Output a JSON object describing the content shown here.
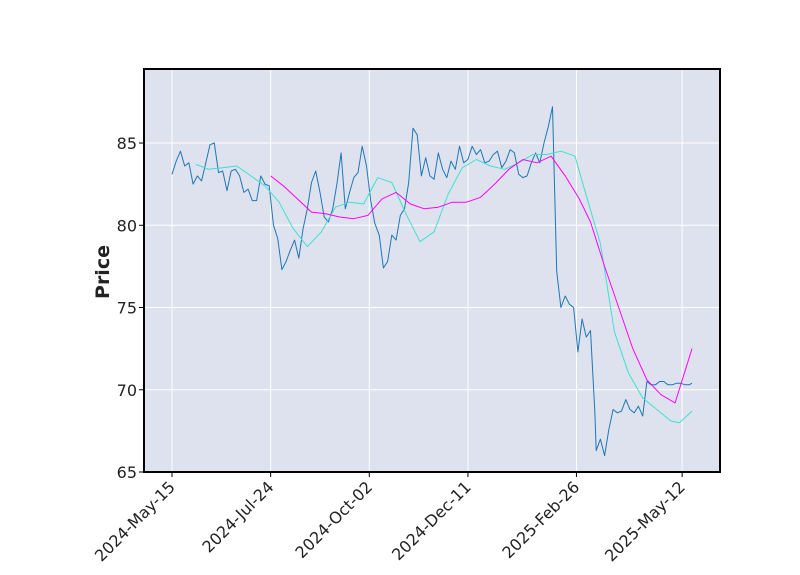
{
  "chart_data": {
    "type": "line",
    "title": "",
    "xlabel": "",
    "ylabel": "Price",
    "ylim": [
      65,
      89.5
    ],
    "yticks": [
      65,
      70,
      75,
      80,
      85
    ],
    "xticks": [
      "2024-May-15",
      "2024-Jul-24",
      "2024-Oct-02",
      "2024-Dec-11",
      "2025-Feb-26",
      "2025-May-12"
    ],
    "grid": true,
    "x_start": "2024-May-15",
    "x_end": "2025-May-19",
    "colors": {
      "background": "#dde2ee",
      "grid": "#ffffff",
      "frame": "#000000",
      "price": "#1f77b4",
      "ma_short": "#40e0d0",
      "ma_long": "#ff00ff"
    },
    "series": [
      {
        "key": "price",
        "x": [
          "2024-05-15",
          "2024-05-18",
          "2024-05-21",
          "2024-05-24",
          "2024-05-27",
          "2024-05-30",
          "2024-06-02",
          "2024-06-05",
          "2024-06-08",
          "2024-06-11",
          "2024-06-14",
          "2024-06-17",
          "2024-06-20",
          "2024-06-23",
          "2024-06-26",
          "2024-06-29",
          "2024-07-02",
          "2024-07-05",
          "2024-07-08",
          "2024-07-11",
          "2024-07-14",
          "2024-07-17",
          "2024-07-20",
          "2024-07-23",
          "2024-07-26",
          "2024-07-29",
          "2024-08-01",
          "2024-08-04",
          "2024-08-07",
          "2024-08-10",
          "2024-08-13",
          "2024-08-16",
          "2024-08-19",
          "2024-08-22",
          "2024-08-25",
          "2024-08-28",
          "2024-08-31",
          "2024-09-03",
          "2024-09-06",
          "2024-09-09",
          "2024-09-12",
          "2024-09-15",
          "2024-09-18",
          "2024-09-21",
          "2024-09-24",
          "2024-09-27",
          "2024-09-30",
          "2024-10-03",
          "2024-10-06",
          "2024-10-09",
          "2024-10-12",
          "2024-10-15",
          "2024-10-18",
          "2024-10-21",
          "2024-10-24",
          "2024-10-27",
          "2024-10-30",
          "2024-11-02",
          "2024-11-05",
          "2024-11-08",
          "2024-11-11",
          "2024-11-14",
          "2024-11-17",
          "2024-11-20",
          "2024-11-23",
          "2024-11-26",
          "2024-11-29",
          "2024-12-02",
          "2024-12-05",
          "2024-12-08",
          "2024-12-11",
          "2024-12-14",
          "2024-12-17",
          "2024-12-20",
          "2024-12-23",
          "2024-12-26",
          "2024-12-29",
          "2025-01-01",
          "2025-01-04",
          "2025-01-07",
          "2025-01-10",
          "2025-01-13",
          "2025-01-16",
          "2025-01-19",
          "2025-01-22",
          "2025-01-25",
          "2025-01-28",
          "2025-01-31",
          "2025-02-03",
          "2025-02-06",
          "2025-02-09",
          "2025-02-12",
          "2025-02-15",
          "2025-02-18",
          "2025-02-21",
          "2025-02-24",
          "2025-02-27",
          "2025-03-02",
          "2025-03-05",
          "2025-03-08",
          "2025-03-11",
          "2025-03-12",
          "2025-03-15",
          "2025-03-18",
          "2025-03-21",
          "2025-03-24",
          "2025-03-27",
          "2025-03-30",
          "2025-04-02",
          "2025-04-05",
          "2025-04-08",
          "2025-04-11",
          "2025-04-14",
          "2025-04-17",
          "2025-04-20",
          "2025-04-23",
          "2025-04-26",
          "2025-04-29",
          "2025-05-02",
          "2025-05-05",
          "2025-05-08",
          "2025-05-11",
          "2025-05-14",
          "2025-05-17",
          "2025-05-19"
        ],
        "y": [
          83.1,
          83.9,
          84.5,
          83.6,
          83.8,
          82.5,
          83.0,
          82.7,
          83.8,
          84.9,
          85.0,
          83.2,
          83.3,
          82.1,
          83.3,
          83.4,
          83.0,
          82.0,
          82.2,
          81.5,
          81.5,
          83.0,
          82.5,
          82.4,
          80.0,
          79.2,
          77.3,
          77.8,
          78.5,
          79.1,
          78.0,
          79.8,
          81.0,
          82.6,
          83.3,
          82.0,
          80.5,
          80.2,
          81.0,
          82.5,
          84.4,
          81.0,
          82.0,
          82.9,
          83.2,
          84.8,
          83.6,
          81.5,
          80.1,
          79.4,
          77.4,
          77.8,
          79.4,
          79.1,
          80.6,
          81.0,
          82.6,
          85.9,
          85.5,
          83.0,
          84.1,
          83.0,
          82.8,
          84.4,
          83.4,
          82.9,
          83.9,
          83.4,
          84.8,
          83.8,
          84.0,
          84.8,
          84.3,
          84.6,
          83.8,
          83.9,
          84.3,
          84.5,
          83.5,
          83.9,
          84.6,
          84.4,
          83.1,
          82.9,
          83.0,
          83.8,
          84.4,
          83.8,
          85.0,
          86.0,
          87.2,
          77.2,
          75.0,
          75.7,
          75.2,
          75.0,
          72.3,
          74.3,
          73.2,
          73.6,
          68.7,
          66.3,
          67.0,
          66.0,
          67.6,
          68.8,
          68.6,
          68.7,
          69.4,
          68.8,
          68.6,
          69.0,
          68.4,
          70.5,
          70.3,
          70.3,
          70.5,
          70.5,
          70.3,
          70.3,
          70.4,
          70.4,
          70.3,
          70.3,
          70.4
        ]
      },
      {
        "key": "ma_short",
        "x": [
          "2024-06-01",
          "2024-06-10",
          "2024-06-20",
          "2024-06-30",
          "2024-07-10",
          "2024-07-20",
          "2024-07-30",
          "2024-08-09",
          "2024-08-19",
          "2024-08-29",
          "2024-09-08",
          "2024-09-18",
          "2024-09-28",
          "2024-10-08",
          "2024-10-18",
          "2024-10-28",
          "2024-11-07",
          "2024-11-17",
          "2024-11-27",
          "2024-12-07",
          "2024-12-17",
          "2024-12-27",
          "2025-01-06",
          "2025-01-16",
          "2025-01-26",
          "2025-02-05",
          "2025-02-15",
          "2025-02-25",
          "2025-03-05",
          "2025-03-15",
          "2025-03-25",
          "2025-04-04",
          "2025-04-14",
          "2025-04-24",
          "2025-05-04",
          "2025-05-10",
          "2025-05-14",
          "2025-05-19"
        ],
        "y": [
          83.7,
          83.4,
          83.5,
          83.6,
          83.0,
          82.4,
          81.4,
          79.8,
          78.7,
          79.6,
          81.1,
          81.4,
          81.3,
          82.9,
          82.6,
          80.7,
          79.0,
          79.6,
          81.9,
          83.5,
          84.0,
          83.6,
          83.4,
          83.8,
          84.3,
          84.3,
          84.5,
          84.2,
          81.8,
          78.9,
          73.5,
          71.0,
          69.5,
          68.8,
          68.1,
          68.0,
          68.3,
          68.7
        ]
      },
      {
        "key": "ma_long",
        "x": [
          "2024-07-24",
          "2024-08-02",
          "2024-08-12",
          "2024-08-22",
          "2024-09-01",
          "2024-09-11",
          "2024-09-21",
          "2024-10-01",
          "2024-10-11",
          "2024-10-21",
          "2024-10-31",
          "2024-11-10",
          "2024-11-20",
          "2024-11-30",
          "2024-12-10",
          "2024-12-20",
          "2024-12-30",
          "2025-01-09",
          "2025-01-19",
          "2025-01-29",
          "2025-02-08",
          "2025-02-18",
          "2025-02-28",
          "2025-03-08",
          "2025-03-18",
          "2025-03-28",
          "2025-04-07",
          "2025-04-17",
          "2025-04-27",
          "2025-05-07",
          "2025-05-19"
        ],
        "y": [
          83.0,
          82.4,
          81.6,
          80.8,
          80.7,
          80.5,
          80.4,
          80.6,
          81.6,
          82.0,
          81.3,
          81.0,
          81.1,
          81.4,
          81.4,
          81.7,
          82.5,
          83.4,
          84.0,
          83.8,
          84.2,
          83.0,
          81.6,
          80.2,
          77.5,
          75.0,
          72.5,
          70.6,
          69.7,
          69.2,
          72.5
        ]
      }
    ]
  }
}
